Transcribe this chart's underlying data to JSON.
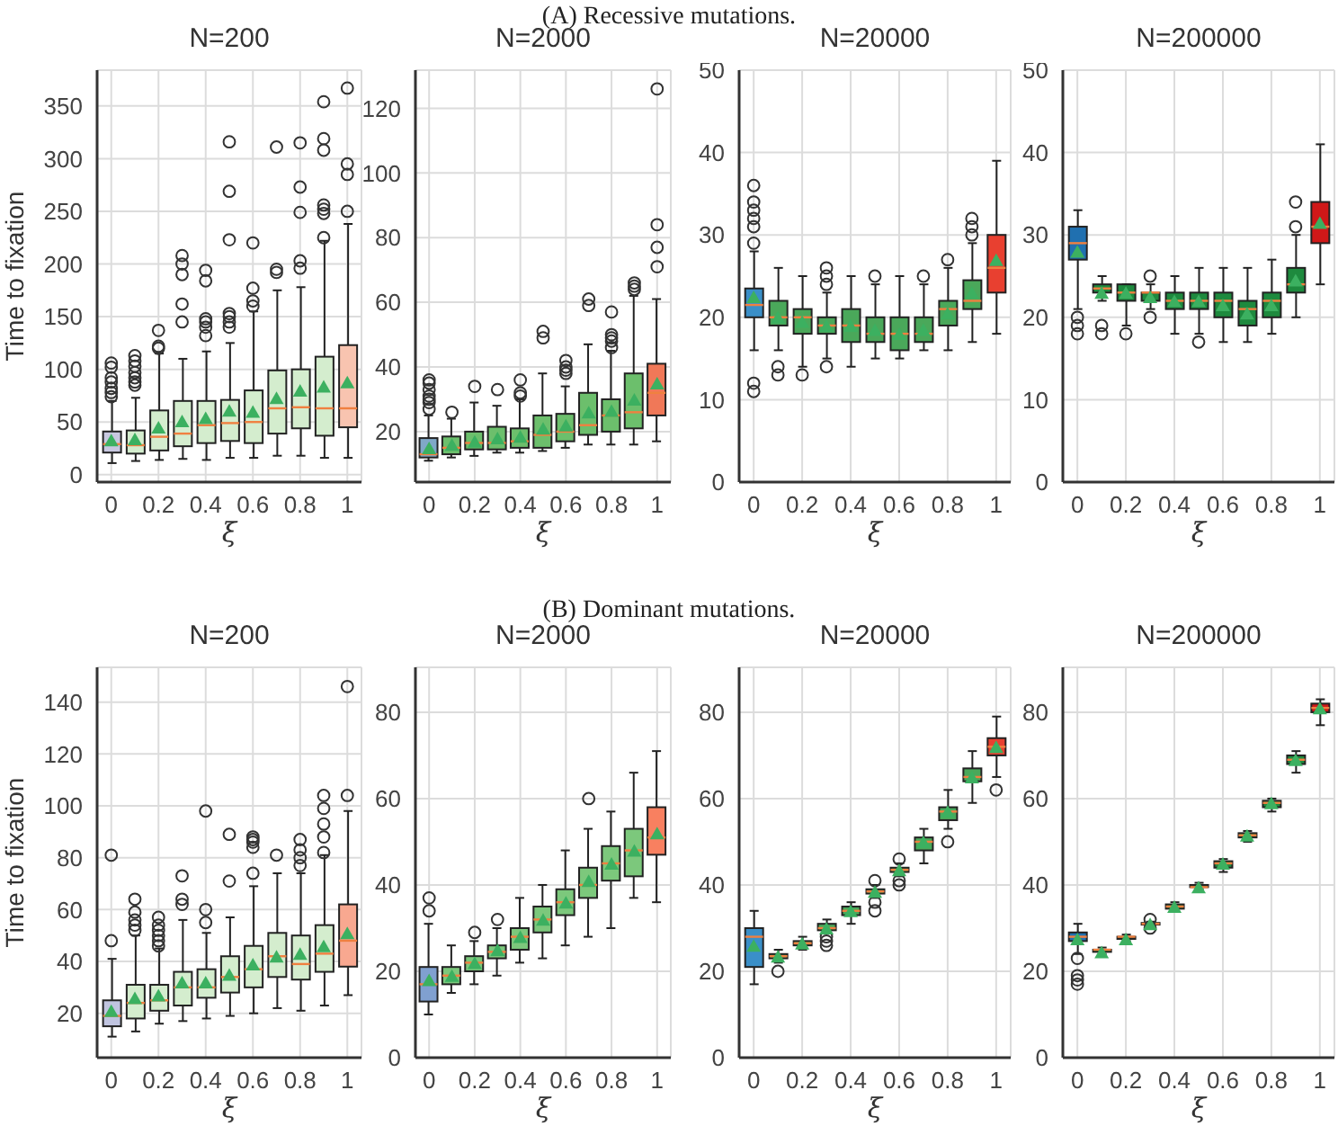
{
  "chart_data": [
    {
      "type": "box",
      "title": "N=200",
      "xlabel": "ξ",
      "ylabel": "Time to fixation",
      "annotations": [
        "(A) Recessive mutations."
      ],
      "categories": [
        "0",
        null,
        "0.2",
        null,
        "0.4",
        null,
        "0.6",
        null,
        "0.8",
        null,
        "1"
      ],
      "ylim": [
        -7,
        384
      ],
      "yticks": [
        0,
        50,
        100,
        150,
        200,
        250,
        300,
        350
      ],
      "grid": true,
      "colors": [
        "#c8c8e0",
        "#d4edce",
        "#d4edce",
        "#d4edce",
        "#d4edce",
        "#d4edce",
        "#d4edce",
        "#d4edce",
        "#d4edce",
        "#d4edce",
        "#f8c4b0"
      ],
      "boxes": [
        {
          "low": 11,
          "q1": 21,
          "median": 29,
          "q3": 41,
          "high": 70,
          "mean": 33,
          "outliers": [
            74,
            78,
            82,
            88,
            92,
            102,
            106
          ]
        },
        {
          "low": 13,
          "q1": 20,
          "median": 28,
          "q3": 42,
          "high": 73,
          "mean": 34,
          "outliers": [
            85,
            88,
            92,
            97,
            103,
            108,
            113
          ]
        },
        {
          "low": 14,
          "q1": 23,
          "median": 36,
          "q3": 61,
          "high": 115,
          "mean": 45,
          "outliers": [
            120,
            122,
            137
          ]
        },
        {
          "low": 15,
          "q1": 27,
          "median": 39,
          "q3": 70,
          "high": 110,
          "mean": 51,
          "outliers": [
            145,
            162,
            190,
            200,
            208
          ]
        },
        {
          "low": 14,
          "q1": 30,
          "median": 47,
          "q3": 70,
          "high": 117,
          "mean": 54,
          "outliers": [
            132,
            140,
            145,
            148,
            184,
            194
          ]
        },
        {
          "low": 16,
          "q1": 32,
          "median": 49,
          "q3": 71,
          "high": 125,
          "mean": 61,
          "outliers": [
            140,
            145,
            150,
            153,
            223,
            269,
            316
          ]
        },
        {
          "low": 16,
          "q1": 30,
          "median": 50,
          "q3": 80,
          "high": 155,
          "mean": 60,
          "outliers": [
            160,
            165,
            177,
            220
          ]
        },
        {
          "low": 18,
          "q1": 39,
          "median": 63,
          "q3": 99,
          "high": 175,
          "mean": 73,
          "outliers": [
            192,
            195,
            311
          ]
        },
        {
          "low": 18,
          "q1": 44,
          "median": 64,
          "q3": 100,
          "high": 178,
          "mean": 80,
          "outliers": [
            196,
            203,
            249,
            273,
            315
          ]
        },
        {
          "low": 16,
          "q1": 37,
          "median": 63,
          "q3": 112,
          "high": 222,
          "mean": 84,
          "outliers": [
            225,
            248,
            252,
            256,
            308,
            319,
            354
          ]
        },
        {
          "low": 16,
          "q1": 45,
          "median": 63,
          "q3": 123,
          "high": 238,
          "mean": 88,
          "outliers": [
            250,
            285,
            295,
            367
          ]
        }
      ]
    },
    {
      "type": "box",
      "title": "N=2000",
      "xlabel": "ξ",
      "categories": [
        "0",
        null,
        "0.2",
        null,
        "0.4",
        null,
        "0.6",
        null,
        "0.8",
        null,
        "1"
      ],
      "ylim": [
        4.4,
        131.8
      ],
      "yticks": [
        20,
        40,
        60,
        80,
        100,
        120
      ],
      "grid": true,
      "colors": [
        "#80a8c8",
        "#6cbf6c",
        "#6cbf6c",
        "#6cbf6c",
        "#6cbf6c",
        "#6cbf6c",
        "#6cbf6c",
        "#6cbf6c",
        "#6cbf6c",
        "#6cbf6c",
        "#f07858"
      ],
      "boxes": [
        {
          "low": 11,
          "q1": 12,
          "median": 13,
          "q3": 18,
          "high": 25,
          "mean": 15,
          "outliers": [
            27,
            29,
            30,
            31,
            33,
            35,
            36
          ]
        },
        {
          "low": 12,
          "q1": 13,
          "median": 15,
          "q3": 18.5,
          "high": 24,
          "mean": 16,
          "outliers": [
            26
          ]
        },
        {
          "low": 12.5,
          "q1": 14.5,
          "median": 16.5,
          "q3": 20,
          "high": 29,
          "mean": 17,
          "outliers": [
            34
          ]
        },
        {
          "low": 13.5,
          "q1": 14.5,
          "median": 16.5,
          "q3": 21.5,
          "high": 28,
          "mean": 18,
          "outliers": [
            33
          ]
        },
        {
          "low": 13.5,
          "q1": 15,
          "median": 17,
          "q3": 21,
          "high": 30,
          "mean": 18.5,
          "outliers": [
            31,
            32,
            36
          ]
        },
        {
          "low": 14,
          "q1": 15,
          "median": 19,
          "q3": 25,
          "high": 38,
          "mean": 21,
          "outliers": [
            49,
            51
          ]
        },
        {
          "low": 15,
          "q1": 17,
          "median": 20,
          "q3": 25.5,
          "high": 34,
          "mean": 22,
          "outliers": [
            38,
            39,
            40,
            42
          ]
        },
        {
          "low": 16,
          "q1": 19,
          "median": 22,
          "q3": 32,
          "high": 47,
          "mean": 26,
          "outliers": [
            59,
            61
          ]
        },
        {
          "low": 16,
          "q1": 20,
          "median": 25,
          "q3": 30,
          "high": 45,
          "mean": 26.5,
          "outliers": [
            46,
            48,
            49,
            50,
            57
          ]
        },
        {
          "low": 16,
          "q1": 21,
          "median": 26,
          "q3": 38,
          "high": 62,
          "mean": 30,
          "outliers": [
            64,
            65,
            66
          ]
        },
        {
          "low": 17,
          "q1": 25,
          "median": 32,
          "q3": 41,
          "high": 61,
          "mean": 35,
          "outliers": [
            71,
            77,
            84,
            126
          ]
        }
      ]
    },
    {
      "type": "box",
      "title": "N=20000",
      "xlabel": "ξ",
      "categories": [
        "0",
        null,
        "0.2",
        null,
        "0.4",
        null,
        "0.6",
        null,
        "0.8",
        null,
        "1"
      ],
      "ylim": [
        0,
        50
      ],
      "yticks": [
        0,
        10,
        20,
        30,
        40,
        50
      ],
      "grid": true,
      "colors": [
        "#3a8fc8",
        "#4aa85a",
        "#4aa85a",
        "#4aa85a",
        "#4aa85a",
        "#4aa85a",
        "#4aa85a",
        "#4aa85a",
        "#4aa85a",
        "#4aa85a",
        "#e84030"
      ],
      "boxes": [
        {
          "low": 16,
          "q1": 20,
          "median": 21.5,
          "q3": 23.5,
          "high": 28,
          "mean": 22.5,
          "outliers": [
            11,
            12,
            29,
            31,
            32,
            33,
            34,
            36
          ]
        },
        {
          "low": 16,
          "q1": 19,
          "median": 20,
          "q3": 22,
          "high": 26,
          "mean": 20,
          "outliers": [
            13,
            14
          ]
        },
        {
          "low": 14,
          "q1": 18,
          "median": 20,
          "q3": 21,
          "high": 25,
          "mean": 19.5,
          "outliers": [
            13
          ]
        },
        {
          "low": 15,
          "q1": 18,
          "median": 19,
          "q3": 20,
          "high": 23,
          "mean": 19,
          "outliers": [
            14,
            24,
            25,
            26
          ]
        },
        {
          "low": 14,
          "q1": 17,
          "median": 19,
          "q3": 21,
          "high": 25,
          "mean": 19
        },
        {
          "low": 15,
          "q1": 17,
          "median": 18,
          "q3": 20,
          "high": 24,
          "mean": 18.5,
          "outliers": [
            25
          ]
        },
        {
          "low": 15,
          "q1": 16,
          "median": 18,
          "q3": 20,
          "high": 25,
          "mean": 18
        },
        {
          "low": 16,
          "q1": 17,
          "median": 18,
          "q3": 20,
          "high": 24,
          "mean": 18.5,
          "outliers": [
            25
          ]
        },
        {
          "low": 16,
          "q1": 19,
          "median": 21,
          "q3": 22,
          "high": 26,
          "mean": 20.5,
          "outliers": [
            27
          ]
        },
        {
          "low": 17,
          "q1": 21,
          "median": 22,
          "q3": 24.5,
          "high": 29,
          "mean": 23,
          "outliers": [
            30,
            31,
            32
          ]
        },
        {
          "low": 18,
          "q1": 23,
          "median": 26,
          "q3": 30,
          "high": 39,
          "mean": 27
        }
      ]
    },
    {
      "type": "box",
      "title": "N=200000",
      "xlabel": "ξ",
      "categories": [
        "0",
        null,
        "0.2",
        null,
        "0.4",
        null,
        "0.6",
        null,
        "0.8",
        null,
        "1"
      ],
      "ylim": [
        0,
        50
      ],
      "yticks": [
        0,
        10,
        20,
        30,
        40,
        50
      ],
      "grid": true,
      "colors": [
        "#2070b0",
        "#1e8a3e",
        "#1e8a3e",
        "#1e8a3e",
        "#1e8a3e",
        "#1e8a3e",
        "#1e8a3e",
        "#1e8a3e",
        "#1e8a3e",
        "#1e8a3e",
        "#d01818"
      ],
      "boxes": [
        {
          "low": 21,
          "q1": 27,
          "median": 29,
          "q3": 31,
          "high": 33,
          "mean": 28,
          "outliers": [
            18,
            19,
            20
          ]
        },
        {
          "low": 22,
          "q1": 23,
          "median": 23.5,
          "q3": 24,
          "high": 25,
          "mean": 23,
          "outliers": [
            18,
            19
          ]
        },
        {
          "low": 19,
          "q1": 22,
          "median": 23,
          "q3": 24,
          "high": 24,
          "mean": 23,
          "outliers": [
            18
          ]
        },
        {
          "low": 21,
          "q1": 22,
          "median": 23,
          "q3": 23,
          "high": 24,
          "mean": 22.5,
          "outliers": [
            20,
            25
          ]
        },
        {
          "low": 18,
          "q1": 21,
          "median": 22,
          "q3": 23,
          "high": 25,
          "mean": 22
        },
        {
          "low": 18,
          "q1": 21,
          "median": 22,
          "q3": 23,
          "high": 26,
          "mean": 22,
          "outliers": [
            17
          ]
        },
        {
          "low": 17,
          "q1": 20,
          "median": 22,
          "q3": 23,
          "high": 26,
          "mean": 21.5
        },
        {
          "low": 17,
          "q1": 19,
          "median": 21,
          "q3": 22,
          "high": 26,
          "mean": 20.5
        },
        {
          "low": 18,
          "q1": 20,
          "median": 22,
          "q3": 23,
          "high": 27,
          "mean": 21.5
        },
        {
          "low": 20,
          "q1": 23,
          "median": 24,
          "q3": 26,
          "high": 30,
          "mean": 24.5,
          "outliers": [
            31,
            34
          ]
        },
        {
          "low": 24,
          "q1": 29,
          "median": 31,
          "q3": 34,
          "high": 41,
          "mean": 31.5
        }
      ]
    },
    {
      "type": "box",
      "title": "N=200",
      "xlabel": "ξ",
      "ylabel": "Time to fixation",
      "annotations": [
        "(B) Dominant mutations."
      ],
      "categories": [
        "0",
        null,
        "0.2",
        null,
        "0.4",
        null,
        "0.6",
        null,
        "0.8",
        null,
        "1"
      ],
      "ylim": [
        2.9,
        153.4
      ],
      "yticks": [
        20,
        40,
        60,
        80,
        100,
        120,
        140
      ],
      "grid": true,
      "colors": [
        "#c0c4e0",
        "#d4edce",
        "#d4edce",
        "#d4edce",
        "#d4edce",
        "#d4edce",
        "#d4edce",
        "#d4edce",
        "#d4edce",
        "#d4edce",
        "#f8a890"
      ],
      "boxes": [
        {
          "low": 11,
          "q1": 15,
          "median": 19,
          "q3": 25,
          "high": 41,
          "mean": 21,
          "outliers": [
            48,
            81
          ]
        },
        {
          "low": 13,
          "q1": 18,
          "median": 24,
          "q3": 31,
          "high": 50,
          "mean": 26,
          "outliers": [
            52,
            54,
            56,
            59,
            64
          ]
        },
        {
          "low": 16,
          "q1": 21,
          "median": 25,
          "q3": 31,
          "high": 45,
          "mean": 27,
          "outliers": [
            46,
            48,
            50,
            52,
            54,
            57
          ]
        },
        {
          "low": 17,
          "q1": 23,
          "median": 30,
          "q3": 36,
          "high": 56,
          "mean": 32,
          "outliers": [
            62,
            64,
            73
          ]
        },
        {
          "low": 18,
          "q1": 26,
          "median": 30,
          "q3": 37,
          "high": 51,
          "mean": 32,
          "outliers": [
            55,
            60,
            98
          ]
        },
        {
          "low": 19,
          "q1": 28,
          "median": 34,
          "q3": 42,
          "high": 57,
          "mean": 35,
          "outliers": [
            71,
            89
          ]
        },
        {
          "low": 20,
          "q1": 30,
          "median": 37,
          "q3": 46,
          "high": 69,
          "mean": 39,
          "outliers": [
            74,
            84,
            86,
            87,
            88
          ]
        },
        {
          "low": 22,
          "q1": 34,
          "median": 42,
          "q3": 51,
          "high": 74,
          "mean": 42,
          "outliers": [
            81
          ]
        },
        {
          "low": 21,
          "q1": 33,
          "median": 39,
          "q3": 50,
          "high": 74,
          "mean": 43,
          "outliers": [
            77,
            80,
            83,
            87
          ]
        },
        {
          "low": 23,
          "q1": 36,
          "median": 43,
          "q3": 54,
          "high": 81,
          "mean": 46,
          "outliers": [
            82,
            88,
            93,
            99,
            104
          ]
        },
        {
          "low": 27,
          "q1": 38,
          "median": 48,
          "q3": 62,
          "high": 98,
          "mean": 51,
          "outliers": [
            104,
            146
          ]
        }
      ]
    },
    {
      "type": "box",
      "title": "N=2000",
      "xlabel": "ξ",
      "categories": [
        "0",
        null,
        "0.2",
        null,
        "0.4",
        null,
        "0.6",
        null,
        "0.8",
        null,
        "1"
      ],
      "ylim": [
        0,
        90.4
      ],
      "yticks": [
        0,
        20,
        40,
        60,
        80
      ],
      "grid": true,
      "colors": [
        "#80a0d0",
        "#7cc87c",
        "#7cc87c",
        "#7cc87c",
        "#7cc87c",
        "#7cc87c",
        "#7cc87c",
        "#7cc87c",
        "#7cc87c",
        "#7cc87c",
        "#f88060"
      ],
      "boxes": [
        {
          "low": 10,
          "q1": 13,
          "median": 17,
          "q3": 21,
          "high": 31,
          "mean": 18,
          "outliers": [
            34,
            37
          ]
        },
        {
          "low": 15,
          "q1": 17,
          "median": 19,
          "q3": 21,
          "high": 26,
          "mean": 19
        },
        {
          "low": 17,
          "q1": 20,
          "median": 22,
          "q3": 23.5,
          "high": 27,
          "mean": 22,
          "outliers": [
            29
          ]
        },
        {
          "low": 19,
          "q1": 23,
          "median": 24.5,
          "q3": 26,
          "high": 30,
          "mean": 25,
          "outliers": [
            32
          ]
        },
        {
          "low": 22,
          "q1": 25,
          "median": 28,
          "q3": 30,
          "high": 37,
          "mean": 28
        },
        {
          "low": 23,
          "q1": 29,
          "median": 32,
          "q3": 35,
          "high": 40,
          "mean": 32
        },
        {
          "low": 26,
          "q1": 33,
          "median": 36,
          "q3": 39,
          "high": 48,
          "mean": 36
        },
        {
          "low": 28,
          "q1": 37,
          "median": 40,
          "q3": 44,
          "high": 53,
          "mean": 41,
          "outliers": [
            60
          ]
        },
        {
          "low": 30,
          "q1": 41,
          "median": 45,
          "q3": 49,
          "high": 57,
          "mean": 45
        },
        {
          "low": 37,
          "q1": 42,
          "median": 48,
          "q3": 53,
          "high": 66,
          "mean": 48
        },
        {
          "low": 36,
          "q1": 47,
          "median": 51,
          "q3": 58,
          "high": 71,
          "mean": 52
        }
      ]
    },
    {
      "type": "box",
      "title": "N=20000",
      "xlabel": "ξ",
      "categories": [
        "0",
        null,
        "0.2",
        null,
        "0.4",
        null,
        "0.6",
        null,
        "0.8",
        null,
        "1"
      ],
      "ylim": [
        0,
        90.4
      ],
      "yticks": [
        0,
        20,
        40,
        60,
        80
      ],
      "grid": true,
      "colors": [
        "#3a8fc8",
        "#4aa85a",
        "#4aa85a",
        "#4aa85a",
        "#4aa85a",
        "#4aa85a",
        "#4aa85a",
        "#4aa85a",
        "#4aa85a",
        "#4aa85a",
        "#e84030"
      ],
      "boxes": [
        {
          "low": 17,
          "q1": 21,
          "median": 28,
          "q3": 30,
          "high": 34,
          "mean": 26
        },
        {
          "low": 22,
          "q1": 23,
          "median": 23.5,
          "q3": 24,
          "high": 25,
          "mean": 23.5,
          "outliers": [
            20
          ]
        },
        {
          "low": 25,
          "q1": 26,
          "median": 26.5,
          "q3": 27,
          "high": 28,
          "mean": 26.5
        },
        {
          "low": 29,
          "q1": 29.5,
          "median": 30,
          "q3": 31,
          "high": 32,
          "mean": 30,
          "outliers": [
            26,
            27,
            28
          ]
        },
        {
          "low": 31,
          "q1": 33,
          "median": 34,
          "q3": 35,
          "high": 36,
          "mean": 34
        },
        {
          "low": 37,
          "q1": 38,
          "median": 38.5,
          "q3": 39,
          "high": 40,
          "mean": 38.5,
          "outliers": [
            34,
            36,
            41
          ]
        },
        {
          "low": 42,
          "q1": 43,
          "median": 43.5,
          "q3": 44,
          "high": 45,
          "mean": 43.5,
          "outliers": [
            40,
            41,
            46
          ]
        },
        {
          "low": 45,
          "q1": 48,
          "median": 50,
          "q3": 51,
          "high": 53,
          "mean": 50
        },
        {
          "low": 53,
          "q1": 55,
          "median": 57,
          "q3": 58,
          "high": 62,
          "mean": 57,
          "outliers": [
            50
          ]
        },
        {
          "low": 59,
          "q1": 64,
          "median": 65,
          "q3": 67,
          "high": 71,
          "mean": 65
        },
        {
          "low": 65,
          "q1": 70,
          "median": 72,
          "q3": 74,
          "high": 79,
          "mean": 72,
          "outliers": [
            62
          ]
        }
      ]
    },
    {
      "type": "box",
      "title": "N=200000",
      "xlabel": "ξ",
      "categories": [
        "0",
        null,
        "0.2",
        null,
        "0.4",
        null,
        "0.6",
        null,
        "0.8",
        null,
        "1"
      ],
      "ylim": [
        0,
        90.4
      ],
      "yticks": [
        0,
        20,
        40,
        60,
        80
      ],
      "grid": true,
      "colors": [
        "#2070b0",
        "#1e8a3e",
        "#1e8a3e",
        "#1e8a3e",
        "#1e8a3e",
        "#1e8a3e",
        "#1e8a3e",
        "#1e8a3e",
        "#1e8a3e",
        "#1e8a3e",
        "#d01818"
      ],
      "boxes": [
        {
          "low": 24,
          "q1": 27,
          "median": 28,
          "q3": 29,
          "high": 31,
          "mean": 27.5,
          "outliers": [
            17,
            18,
            19,
            23
          ]
        },
        {
          "low": 24,
          "q1": 24.5,
          "median": 25,
          "q3": 25,
          "high": 25.5,
          "mean": 24.5
        },
        {
          "low": 27,
          "q1": 27.5,
          "median": 28,
          "q3": 28,
          "high": 28.5,
          "mean": 27.5
        },
        {
          "low": 30.5,
          "q1": 30.8,
          "median": 31,
          "q3": 31.2,
          "high": 31.5,
          "mean": 31,
          "outliers": [
            30,
            32
          ]
        },
        {
          "low": 34,
          "q1": 34.5,
          "median": 35,
          "q3": 35.5,
          "high": 36,
          "mean": 35
        },
        {
          "low": 39,
          "q1": 39.5,
          "median": 39.5,
          "q3": 40,
          "high": 40.5,
          "mean": 39.5
        },
        {
          "low": 43,
          "q1": 44,
          "median": 45,
          "q3": 45.5,
          "high": 46,
          "mean": 45
        },
        {
          "low": 50,
          "q1": 51,
          "median": 51.5,
          "q3": 52,
          "high": 52.5,
          "mean": 51.5
        },
        {
          "low": 57,
          "q1": 58,
          "median": 59,
          "q3": 59.5,
          "high": 60,
          "mean": 59
        },
        {
          "low": 66,
          "q1": 68,
          "median": 69,
          "q3": 70,
          "high": 71,
          "mean": 69
        },
        {
          "low": 77,
          "q1": 80,
          "median": 81,
          "q3": 82,
          "high": 83,
          "mean": 81
        }
      ]
    }
  ]
}
